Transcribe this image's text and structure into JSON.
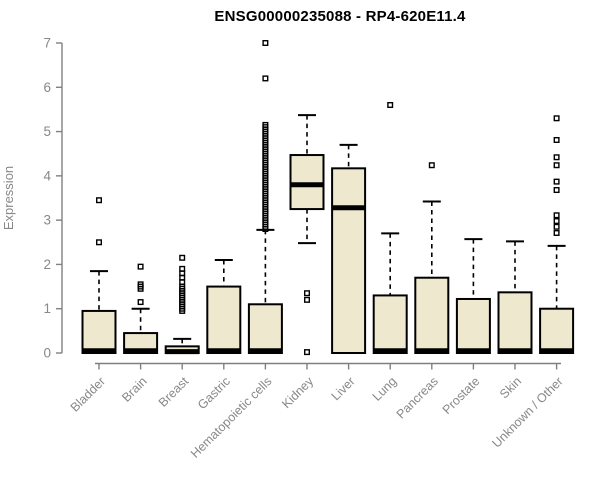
{
  "chart_data": {
    "type": "boxplot",
    "title": "ENSG00000235088 - RP4-620E11.4",
    "ylabel": "Expression",
    "xlabel": "",
    "ylim": [
      0,
      7
    ],
    "yticks": [
      0,
      1,
      2,
      3,
      4,
      5,
      6,
      7
    ],
    "grid": false,
    "legend": false,
    "categories": [
      "Bladder",
      "Brain",
      "Breast",
      "Gastric",
      "Hematopoietic cells",
      "Kidney",
      "Liver",
      "Lung",
      "Pancreas",
      "Prostate",
      "Skin",
      "Unknown / Other"
    ],
    "series": [
      {
        "category": "Bladder",
        "whisker_low": 0,
        "q1": 0,
        "median": 0.05,
        "q3": 0.95,
        "whisker_high": 1.85,
        "outliers": [
          2.5,
          3.45
        ]
      },
      {
        "category": "Brain",
        "whisker_low": 0,
        "q1": 0,
        "median": 0.05,
        "q3": 0.45,
        "whisker_high": 1.0,
        "outliers": [
          1.15,
          1.45,
          1.5,
          1.55,
          1.95
        ]
      },
      {
        "category": "Breast",
        "whisker_low": 0,
        "q1": 0,
        "median": 0.03,
        "q3": 0.15,
        "whisker_high": 0.32,
        "outliers": [
          0.95,
          1.0,
          1.05,
          1.1,
          1.15,
          1.2,
          1.25,
          1.3,
          1.35,
          1.4,
          1.45,
          1.5,
          1.6,
          1.7,
          1.8,
          1.9,
          2.15
        ]
      },
      {
        "category": "Gastric",
        "whisker_low": 0,
        "q1": 0,
        "median": 0.05,
        "q3": 1.5,
        "whisker_high": 2.1,
        "outliers": []
      },
      {
        "category": "Hematopoietic cells",
        "whisker_low": 0,
        "q1": 0,
        "median": 0.05,
        "q3": 1.1,
        "whisker_high": 2.78,
        "outliers": [
          2.8,
          2.85,
          2.9,
          2.95,
          3.0,
          3.05,
          3.1,
          3.15,
          3.2,
          3.25,
          3.3,
          3.35,
          3.4,
          3.45,
          3.5,
          3.55,
          3.6,
          3.65,
          3.7,
          3.75,
          3.8,
          3.85,
          3.9,
          3.95,
          4.0,
          4.05,
          4.1,
          4.15,
          4.2,
          4.25,
          4.3,
          4.35,
          4.4,
          4.45,
          4.5,
          4.55,
          4.6,
          4.65,
          4.7,
          4.75,
          4.8,
          4.85,
          4.9,
          4.95,
          5.0,
          5.05,
          5.1,
          5.15,
          6.2,
          7.0
        ]
      },
      {
        "category": "Kidney",
        "whisker_low": 2.48,
        "q1": 3.25,
        "median": 3.8,
        "q3": 4.47,
        "whisker_high": 5.37,
        "outliers": [
          0.02,
          1.2,
          1.35
        ]
      },
      {
        "category": "Liver",
        "whisker_low": 0,
        "q1": 0,
        "median": 3.28,
        "q3": 4.17,
        "whisker_high": 4.7,
        "outliers": []
      },
      {
        "category": "Lung",
        "whisker_low": 0,
        "q1": 0,
        "median": 0.05,
        "q3": 1.3,
        "whisker_high": 2.7,
        "outliers": [
          5.6
        ]
      },
      {
        "category": "Pancreas",
        "whisker_low": 0,
        "q1": 0,
        "median": 0.05,
        "q3": 1.7,
        "whisker_high": 3.42,
        "outliers": [
          4.24
        ]
      },
      {
        "category": "Prostate",
        "whisker_low": 0,
        "q1": 0,
        "median": 0.05,
        "q3": 1.22,
        "whisker_high": 2.57,
        "outliers": []
      },
      {
        "category": "Skin",
        "whisker_low": 0,
        "q1": 0,
        "median": 0.05,
        "q3": 1.37,
        "whisker_high": 2.52,
        "outliers": []
      },
      {
        "category": "Unknown / Other",
        "whisker_low": 0,
        "q1": 0,
        "median": 0.05,
        "q3": 1.0,
        "whisker_high": 2.42,
        "outliers": [
          2.71,
          2.85,
          2.98,
          3.11,
          3.68,
          3.87,
          4.24,
          4.42,
          4.81,
          5.3
        ]
      }
    ],
    "colors": {
      "box_fill": "#EDE8CE",
      "box_border": "#000000",
      "median": "#000000",
      "whisker": "#000000",
      "outlier": "#000000",
      "axis": "#808080",
      "tick_label": "#888888",
      "title": "#000000",
      "background": "#FFFFFF"
    }
  }
}
